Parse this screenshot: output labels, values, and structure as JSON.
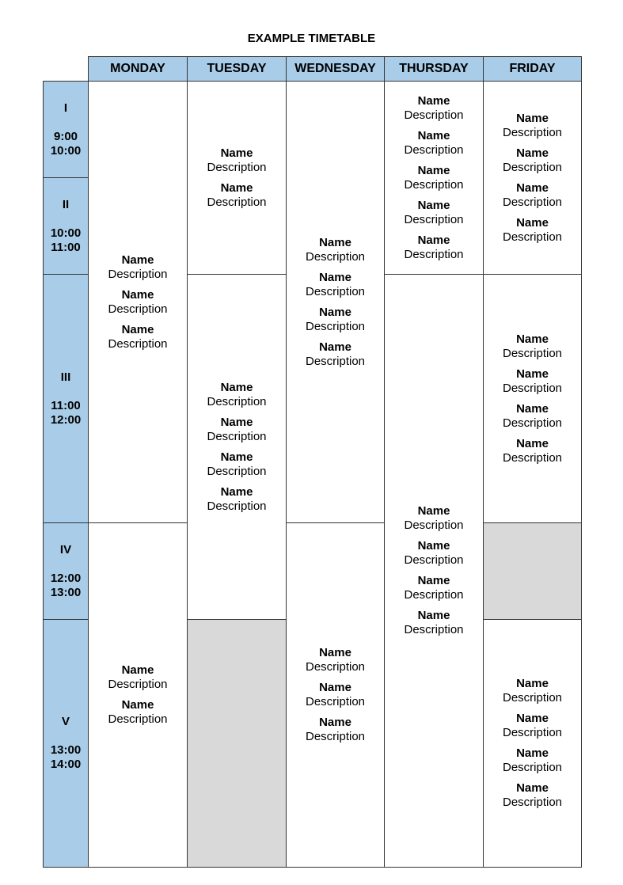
{
  "title": "EXAMPLE TIMETABLE",
  "days": [
    "MONDAY",
    "TUESDAY",
    "WEDNESDAY",
    "THURSDAY",
    "FRIDAY"
  ],
  "periods": [
    {
      "label": "I",
      "start": "9:00",
      "end": "10:00"
    },
    {
      "label": "II",
      "start": "10:00",
      "end": "11:00"
    },
    {
      "label": "III",
      "start": "11:00",
      "end": "12:00"
    },
    {
      "label": "IV",
      "start": "12:00",
      "end": "13:00"
    },
    {
      "label": "V",
      "start": "13:00",
      "end": "14:00"
    }
  ],
  "colors": {
    "header": "#a9cde9",
    "empty": "#d9d9d9"
  },
  "schedule": [
    {
      "day": "MONDAY",
      "blocks": [
        {
          "from_period": 1,
          "to_period": 3,
          "items": 3
        },
        {
          "from_period": 4,
          "to_period": 5,
          "items": 2
        }
      ]
    },
    {
      "day": "TUESDAY",
      "blocks": [
        {
          "from_period": 1,
          "to_period": 2,
          "items": 2
        },
        {
          "from_period": 3,
          "to_period": 4,
          "items": 4
        },
        {
          "from_period": 5,
          "to_period": 5,
          "items": 0
        }
      ]
    },
    {
      "day": "WEDNESDAY",
      "blocks": [
        {
          "from_period": 1,
          "to_period": 3,
          "items": 4
        },
        {
          "from_period": 4,
          "to_period": 5,
          "items": 3
        }
      ]
    },
    {
      "day": "THURSDAY",
      "blocks": [
        {
          "from_period": 1,
          "to_period": 2,
          "items": 5
        },
        {
          "from_period": 3,
          "to_period": 5,
          "items": 4
        }
      ]
    },
    {
      "day": "FRIDAY",
      "blocks": [
        {
          "from_period": 1,
          "to_period": 2,
          "items": 4
        },
        {
          "from_period": 3,
          "to_period": 3,
          "items": 4
        },
        {
          "from_period": 4,
          "to_period": 4,
          "items": 0
        },
        {
          "from_period": 5,
          "to_period": 5,
          "items": 4
        }
      ]
    }
  ],
  "item": {
    "name": "Name",
    "description": "Description"
  }
}
